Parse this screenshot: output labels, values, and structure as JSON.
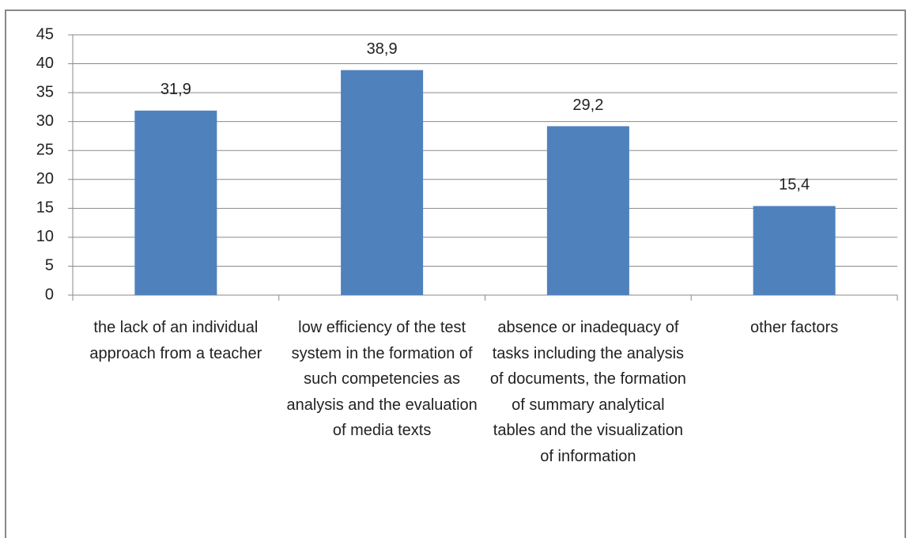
{
  "chart_data": {
    "type": "bar",
    "categories": [
      "the lack of an individual approach from a teacher",
      "low efficiency of the test system in the formation of such competencies as analysis and the evaluation of media texts",
      "absence or inadequacy of tasks including the analysis of documents, the formation of summary analytical tables and the visualization of information",
      "other factors"
    ],
    "values": [
      31.9,
      38.9,
      29.2,
      15.4
    ],
    "value_labels": [
      "31,9",
      "38,9",
      "29,2",
      "15,4"
    ],
    "color": "#4f81bd",
    "ylim": [
      0,
      45
    ],
    "yticks": [
      0,
      5,
      10,
      15,
      20,
      25,
      30,
      35,
      40,
      45
    ],
    "grid": true
  }
}
